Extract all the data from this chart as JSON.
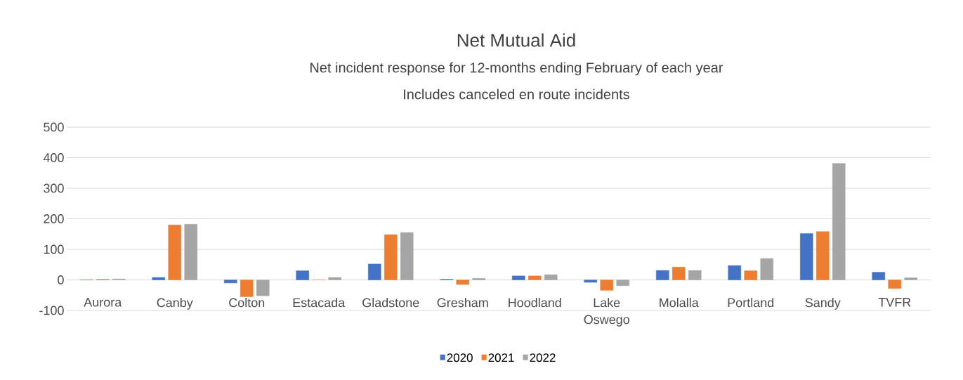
{
  "chart_data": {
    "type": "bar",
    "title": "Net Mutual Aid",
    "subtitle": "Net incident response for 12-months ending February of each year",
    "annotations": [
      "Includes canceled en route incidents"
    ],
    "categories": [
      "Aurora",
      "Canby",
      "Colton",
      "Estacada",
      "Gladstone",
      "Gresham",
      "Hoodland",
      "Lake Oswego",
      "Molalla",
      "Portland",
      "Sandy",
      "TVFR"
    ],
    "series": [
      {
        "name": "2020",
        "color": "#4472c4",
        "values": [
          0,
          8,
          -10,
          30,
          52,
          2,
          13,
          -8,
          31,
          47,
          152,
          25
        ]
      },
      {
        "name": "2021",
        "color": "#ed7d31",
        "values": [
          2,
          180,
          -55,
          0,
          148,
          -15,
          13,
          -34,
          42,
          30,
          158,
          -28
        ]
      },
      {
        "name": "2022",
        "color": "#a5a5a5",
        "values": [
          3,
          182,
          -52,
          8,
          155,
          5,
          17,
          -19,
          31,
          70,
          381,
          7
        ]
      }
    ],
    "ylim": [
      -100,
      500
    ],
    "yticks": [
      -100,
      0,
      100,
      200,
      300,
      400,
      500
    ],
    "grid": "y",
    "legend": "bottom"
  }
}
